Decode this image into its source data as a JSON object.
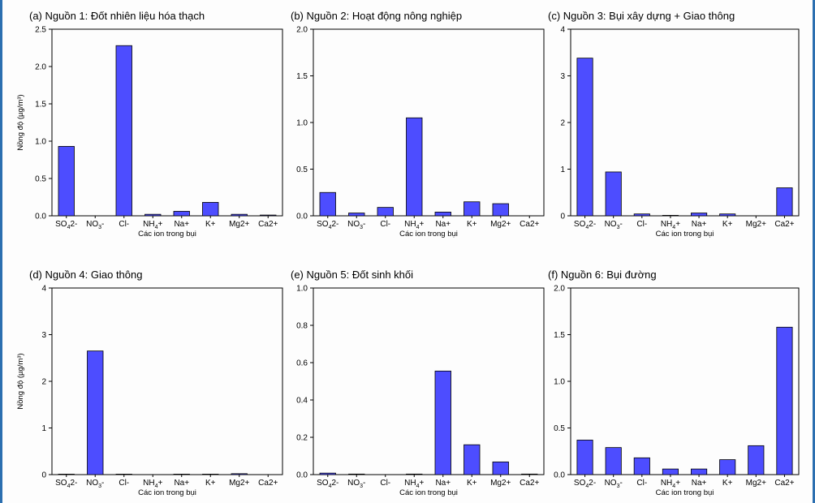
{
  "xlabel": "Các ion trong bụi",
  "ylabel": "Nồng độ (µg/m³)",
  "bar_color": "#4d4dff",
  "chart_data": [
    {
      "type": "bar",
      "title": "(a) Nguồn 1: Đốt nhiên liệu hóa thạch",
      "categories": [
        "SO4 2-",
        "NO3 -",
        "Cl-",
        "NH4 +",
        "Na+",
        "K+",
        "Mg2+",
        "Ca2+"
      ],
      "values": [
        0.93,
        0,
        2.28,
        0.02,
        0.06,
        0.18,
        0.02,
        0.01
      ],
      "ylim": [
        0,
        2.5
      ],
      "yticks": [
        "0.0",
        "0.5",
        "1.0",
        "1.5",
        "2.0",
        "2.5"
      ],
      "xlabel": "Các ion trong bụi",
      "ylabel": "Nồng độ (µg/m³)"
    },
    {
      "type": "bar",
      "title": "(b) Nguồn 2: Hoạt động nông nghiệp",
      "categories": [
        "SO4 2-",
        "NO3 -",
        "Cl-",
        "NH4 +",
        "Na+",
        "K+",
        "Mg2+",
        "Ca2+"
      ],
      "values": [
        0.25,
        0.03,
        0.09,
        1.05,
        0.04,
        0.15,
        0.13,
        0
      ],
      "ylim": [
        0,
        2.0
      ],
      "yticks": [
        "0.0",
        "0.5",
        "1.0",
        "1.5",
        "2.0"
      ],
      "xlabel": "Các ion trong bụi",
      "ylabel": ""
    },
    {
      "type": "bar",
      "title": "(c) Nguồn 3: Bụi xây dựng + Giao thông",
      "categories": [
        "SO4 2-",
        "NO3 -",
        "Cl-",
        "NH4 +",
        "Na+",
        "K+",
        "Mg2+",
        "Ca2+"
      ],
      "values": [
        3.38,
        0.94,
        0.04,
        0.01,
        0.06,
        0.04,
        0,
        0.6
      ],
      "ylim": [
        0,
        4
      ],
      "yticks": [
        "0",
        "1",
        "2",
        "3",
        "4"
      ],
      "xlabel": "Các ion trong bụi",
      "ylabel": ""
    },
    {
      "type": "bar",
      "title": "(d) Nguồn 4: Giao thông",
      "categories": [
        "SO4 2-",
        "NO3 -",
        "Cl-",
        "NH4 +",
        "Na+",
        "K+",
        "Mg2+",
        "Ca2+"
      ],
      "values": [
        0.01,
        2.65,
        0.01,
        0,
        0.01,
        0.01,
        0.02,
        0
      ],
      "ylim": [
        0,
        4
      ],
      "yticks": [
        "0",
        "1",
        "2",
        "3",
        "4"
      ],
      "xlabel": "Các ion trong bụi",
      "ylabel": "Nồng độ (µg/m³)"
    },
    {
      "type": "bar",
      "title": "(e) Nguồn 5: Đốt sinh khối",
      "categories": [
        "SO4 2-",
        "NO3 -",
        "Cl-",
        "NH4 +",
        "Na+",
        "K+",
        "Mg2+",
        "Ca2+"
      ],
      "values": [
        0.008,
        0.003,
        0,
        0.003,
        0.555,
        0.16,
        0.068,
        0.003
      ],
      "ylim": [
        0,
        1.0
      ],
      "yticks": [
        "0.0",
        "0.2",
        "0.4",
        "0.6",
        "0.8",
        "1.0"
      ],
      "xlabel": "Các ion trong bụi",
      "ylabel": ""
    },
    {
      "type": "bar",
      "title": "(f) Nguồn 6: Bụi đường",
      "categories": [
        "SO4 2-",
        "NO3 -",
        "Cl-",
        "NH4 +",
        "Na+",
        "K+",
        "Mg2+",
        "Ca2+"
      ],
      "values": [
        0.37,
        0.29,
        0.18,
        0.06,
        0.06,
        0.16,
        0.31,
        1.58
      ],
      "ylim": [
        0,
        2.0
      ],
      "yticks": [
        "0.0",
        "0.5",
        "1.0",
        "1.5",
        "2.0"
      ],
      "xlabel": "Các ion trong bụi",
      "ylabel": ""
    }
  ]
}
